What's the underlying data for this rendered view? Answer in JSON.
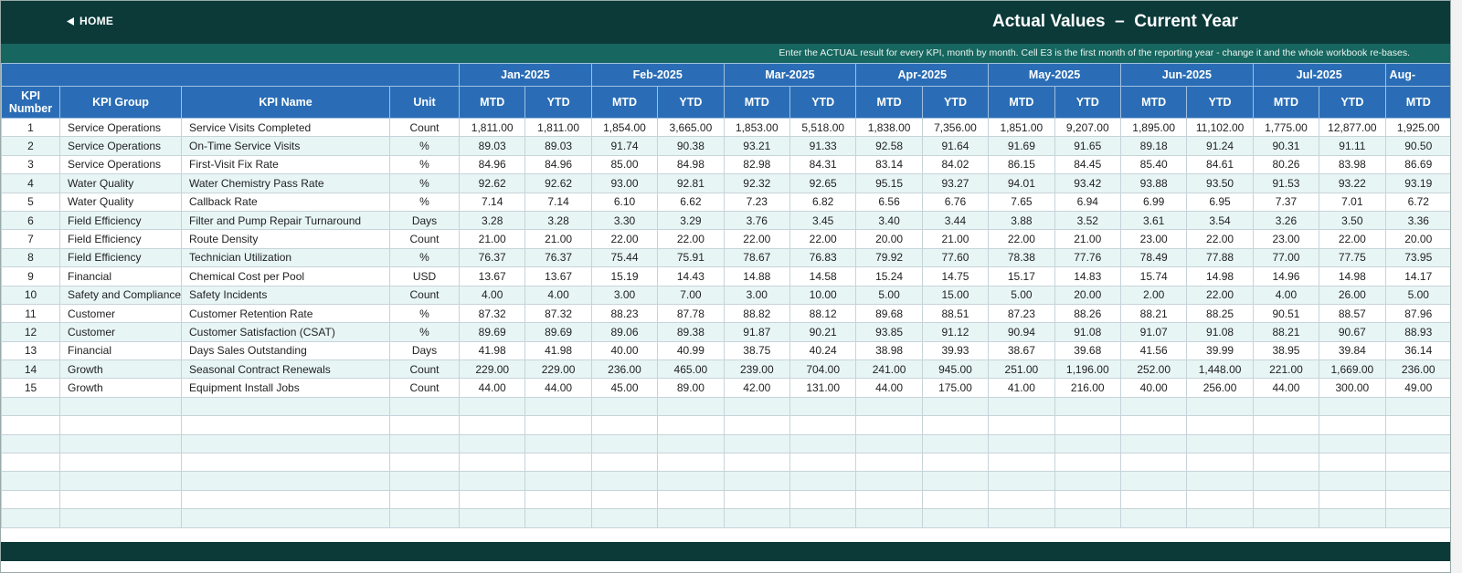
{
  "header": {
    "home": "HOME",
    "title": "Actual Values  –  Current Year",
    "instruction": "Enter the ACTUAL result for every KPI, month by month. Cell E3 is the first month of the reporting year - change it and the whole workbook re-bases."
  },
  "table": {
    "columns": [
      "KPI Number",
      "KPI Group",
      "KPI Name",
      "Unit"
    ],
    "months": [
      "Jan-2025",
      "Feb-2025",
      "Mar-2025",
      "Apr-2025",
      "May-2025",
      "Jun-2025",
      "Jul-2025",
      "Aug-"
    ],
    "sub_headers": [
      "MTD",
      "YTD"
    ],
    "rows": [
      [
        1,
        "Service Operations",
        "Service Visits Completed",
        "Count",
        "1,811.00",
        "1,811.00",
        "1,854.00",
        "3,665.00",
        "1,853.00",
        "5,518.00",
        "1,838.00",
        "7,356.00",
        "1,851.00",
        "9,207.00",
        "1,895.00",
        "11,102.00",
        "1,775.00",
        "12,877.00",
        "1,925.00"
      ],
      [
        2,
        "Service Operations",
        "On-Time Service Visits",
        "%",
        "89.03",
        "89.03",
        "91.74",
        "90.38",
        "93.21",
        "91.33",
        "92.58",
        "91.64",
        "91.69",
        "91.65",
        "89.18",
        "91.24",
        "90.31",
        "91.11",
        "90.50"
      ],
      [
        3,
        "Service Operations",
        "First-Visit Fix Rate",
        "%",
        "84.96",
        "84.96",
        "85.00",
        "84.98",
        "82.98",
        "84.31",
        "83.14",
        "84.02",
        "86.15",
        "84.45",
        "85.40",
        "84.61",
        "80.26",
        "83.98",
        "86.69"
      ],
      [
        4,
        "Water Quality",
        "Water Chemistry Pass Rate",
        "%",
        "92.62",
        "92.62",
        "93.00",
        "92.81",
        "92.32",
        "92.65",
        "95.15",
        "93.27",
        "94.01",
        "93.42",
        "93.88",
        "93.50",
        "91.53",
        "93.22",
        "93.19"
      ],
      [
        5,
        "Water Quality",
        "Callback Rate",
        "%",
        "7.14",
        "7.14",
        "6.10",
        "6.62",
        "7.23",
        "6.82",
        "6.56",
        "6.76",
        "7.65",
        "6.94",
        "6.99",
        "6.95",
        "7.37",
        "7.01",
        "6.72"
      ],
      [
        6,
        "Field Efficiency",
        "Filter and Pump Repair Turnaround",
        "Days",
        "3.28",
        "3.28",
        "3.30",
        "3.29",
        "3.76",
        "3.45",
        "3.40",
        "3.44",
        "3.88",
        "3.52",
        "3.61",
        "3.54",
        "3.26",
        "3.50",
        "3.36"
      ],
      [
        7,
        "Field Efficiency",
        "Route Density",
        "Count",
        "21.00",
        "21.00",
        "22.00",
        "22.00",
        "22.00",
        "22.00",
        "20.00",
        "21.00",
        "22.00",
        "21.00",
        "23.00",
        "22.00",
        "23.00",
        "22.00",
        "20.00"
      ],
      [
        8,
        "Field Efficiency",
        "Technician Utilization",
        "%",
        "76.37",
        "76.37",
        "75.44",
        "75.91",
        "78.67",
        "76.83",
        "79.92",
        "77.60",
        "78.38",
        "77.76",
        "78.49",
        "77.88",
        "77.00",
        "77.75",
        "73.95"
      ],
      [
        9,
        "Financial",
        "Chemical Cost per Pool",
        "USD",
        "13.67",
        "13.67",
        "15.19",
        "14.43",
        "14.88",
        "14.58",
        "15.24",
        "14.75",
        "15.17",
        "14.83",
        "15.74",
        "14.98",
        "14.96",
        "14.98",
        "14.17"
      ],
      [
        10,
        "Safety and Compliance",
        "Safety Incidents",
        "Count",
        "4.00",
        "4.00",
        "3.00",
        "7.00",
        "3.00",
        "10.00",
        "5.00",
        "15.00",
        "5.00",
        "20.00",
        "2.00",
        "22.00",
        "4.00",
        "26.00",
        "5.00"
      ],
      [
        11,
        "Customer",
        "Customer Retention Rate",
        "%",
        "87.32",
        "87.32",
        "88.23",
        "87.78",
        "88.82",
        "88.12",
        "89.68",
        "88.51",
        "87.23",
        "88.26",
        "88.21",
        "88.25",
        "90.51",
        "88.57",
        "87.96"
      ],
      [
        12,
        "Customer",
        "Customer Satisfaction (CSAT)",
        "%",
        "89.69",
        "89.69",
        "89.06",
        "89.38",
        "91.87",
        "90.21",
        "93.85",
        "91.12",
        "90.94",
        "91.08",
        "91.07",
        "91.08",
        "88.21",
        "90.67",
        "88.93"
      ],
      [
        13,
        "Financial",
        "Days Sales Outstanding",
        "Days",
        "41.98",
        "41.98",
        "40.00",
        "40.99",
        "38.75",
        "40.24",
        "38.98",
        "39.93",
        "38.67",
        "39.68",
        "41.56",
        "39.99",
        "38.95",
        "39.84",
        "36.14"
      ],
      [
        14,
        "Growth",
        "Seasonal Contract Renewals",
        "Count",
        "229.00",
        "229.00",
        "236.00",
        "465.00",
        "239.00",
        "704.00",
        "241.00",
        "945.00",
        "251.00",
        "1,196.00",
        "252.00",
        "1,448.00",
        "221.00",
        "1,669.00",
        "236.00"
      ],
      [
        15,
        "Growth",
        "Equipment Install Jobs",
        "Count",
        "44.00",
        "44.00",
        "45.00",
        "89.00",
        "42.00",
        "131.00",
        "44.00",
        "175.00",
        "41.00",
        "216.00",
        "40.00",
        "256.00",
        "44.00",
        "300.00",
        "49.00"
      ]
    ]
  }
}
